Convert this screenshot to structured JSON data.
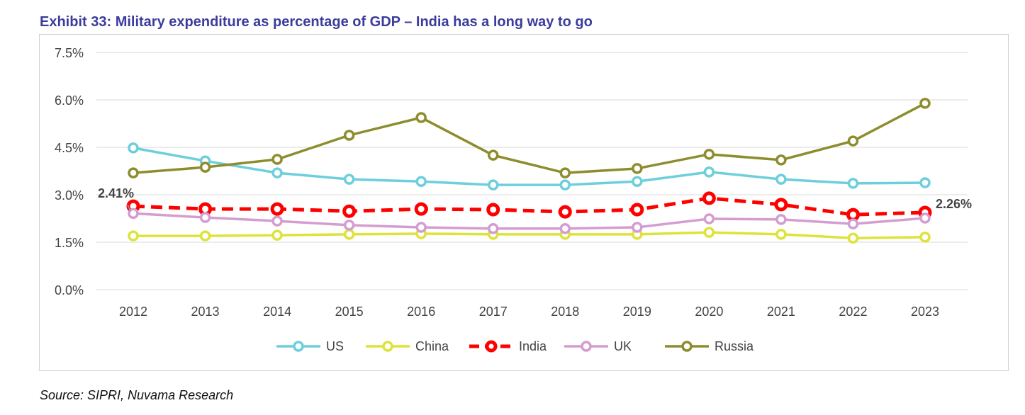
{
  "title": "Exhibit 33: Military expenditure as percentage of GDP – India has a long way to go",
  "source": "Source: SIPRI, Nuvama Research",
  "chart_data": {
    "type": "line",
    "title": "Exhibit 33: Military expenditure as percentage of GDP – India has a long way to go",
    "xlabel": "",
    "ylabel": "",
    "ylim": [
      0,
      7.5
    ],
    "yticks": [
      "0.0%",
      "1.5%",
      "3.0%",
      "4.5%",
      "6.0%",
      "7.5%"
    ],
    "ytick_values": [
      0,
      1.5,
      3.0,
      4.5,
      6.0,
      7.5
    ],
    "categories": [
      "2012",
      "2013",
      "2014",
      "2015",
      "2016",
      "2017",
      "2018",
      "2019",
      "2020",
      "2021",
      "2022",
      "2023"
    ],
    "grid": true,
    "legend": "bottom",
    "series": [
      {
        "name": "US",
        "color": "#6dcfdc",
        "dashed": false,
        "values": [
          4.48,
          4.07,
          3.69,
          3.49,
          3.42,
          3.31,
          3.31,
          3.42,
          3.72,
          3.49,
          3.36,
          3.38
        ]
      },
      {
        "name": "China",
        "color": "#dde33a",
        "dashed": false,
        "values": [
          1.7,
          1.7,
          1.72,
          1.75,
          1.77,
          1.75,
          1.75,
          1.75,
          1.81,
          1.75,
          1.63,
          1.66
        ]
      },
      {
        "name": "India",
        "color": "#ff0000",
        "dashed": true,
        "values": [
          2.64,
          2.55,
          2.55,
          2.48,
          2.55,
          2.53,
          2.46,
          2.53,
          2.89,
          2.69,
          2.37,
          2.44
        ]
      },
      {
        "name": "UK",
        "color": "#d49dd0",
        "dashed": false,
        "values": [
          2.41,
          2.28,
          2.17,
          2.04,
          1.97,
          1.93,
          1.93,
          1.97,
          2.24,
          2.22,
          2.08,
          2.26
        ]
      },
      {
        "name": "Russia",
        "color": "#8d8d2e",
        "dashed": false,
        "values": [
          3.69,
          3.87,
          4.12,
          4.88,
          5.44,
          4.25,
          3.69,
          3.83,
          4.28,
          4.1,
          4.7,
          5.89
        ]
      }
    ],
    "annotations": [
      {
        "text": "2.41%",
        "series": "UK",
        "category": "2012"
      },
      {
        "text": "2.26%",
        "series": "UK",
        "category": "2023"
      }
    ]
  }
}
